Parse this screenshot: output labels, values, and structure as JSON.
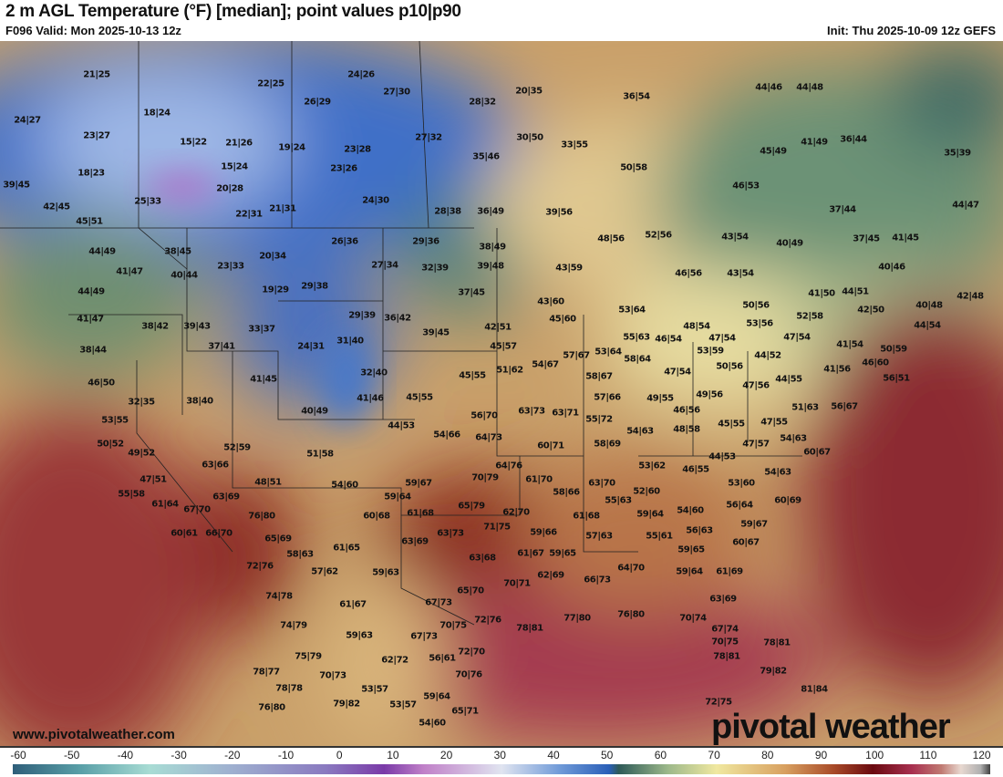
{
  "header": {
    "title": "2 m AGL Temperature (°F) [median]; point values p10|p90",
    "valid": "F096 Valid: Mon 2025-10-13 12z",
    "init": "Init: Thu 2025-10-09 12z GEFS"
  },
  "map": {
    "watermark_url": "www.pivotalweather.com",
    "logo": "pivotal weather",
    "point_values": [
      "21|25",
      "22|25",
      "24|26",
      "27|30",
      "24|27",
      "18|24",
      "28|32",
      "20|35",
      "36|54",
      "44|46",
      "44|48",
      "23|27",
      "15|22",
      "21|26",
      "19|24",
      "23|28",
      "26|29",
      "27|32",
      "30|50",
      "33|55",
      "45|49",
      "41|49",
      "36|44",
      "35|39",
      "35|46",
      "18|23",
      "15|24",
      "23|26",
      "50|58",
      "46|53",
      "39|45",
      "20|28",
      "24|30",
      "25|33",
      "42|45",
      "21|31",
      "22|31",
      "28|38",
      "36|49",
      "39|56",
      "37|44",
      "44|47",
      "45|51",
      "48|56",
      "52|56",
      "43|54",
      "40|49",
      "37|45",
      "41|45",
      "26|36",
      "29|36",
      "38|49",
      "44|49",
      "38|45",
      "20|34",
      "27|34",
      "32|39",
      "39|48",
      "43|59",
      "46|56",
      "43|54",
      "40|46",
      "41|47",
      "40|44",
      "23|33",
      "29|38",
      "19|29",
      "37|45",
      "44|49",
      "41|50",
      "44|51",
      "40|48",
      "42|48",
      "43|60",
      "53|64",
      "50|56",
      "42|50",
      "41|47",
      "45|60",
      "29|39",
      "36|42",
      "52|58",
      "38|42",
      "39|43",
      "33|37",
      "55|63",
      "48|54",
      "53|56",
      "44|54",
      "42|51",
      "39|45",
      "46|54",
      "47|54",
      "47|54",
      "31|40",
      "38|44",
      "37|41",
      "24|31",
      "45|57",
      "57|67",
      "53|64",
      "53|59",
      "44|52",
      "41|54",
      "50|59",
      "58|64",
      "50|56",
      "46|60",
      "32|40",
      "54|67",
      "41|45",
      "46|50",
      "51|62",
      "58|67",
      "47|54",
      "41|56",
      "56|51",
      "45|55",
      "44|55",
      "47|56",
      "41|46",
      "45|55",
      "57|66",
      "49|55",
      "49|56",
      "32|35",
      "38|40",
      "46|56",
      "51|63",
      "56|67",
      "40|49",
      "56|70",
      "63|73",
      "63|71",
      "55|72",
      "48|58",
      "45|55",
      "47|55",
      "53|55",
      "44|53",
      "54|66",
      "64|73",
      "54|63",
      "54|63",
      "50|52",
      "52|59",
      "60|71",
      "58|69",
      "47|57",
      "60|67",
      "49|52",
      "51|58",
      "44|53",
      "63|66",
      "64|76",
      "53|62",
      "46|55",
      "54|63",
      "47|51",
      "48|51",
      "54|60",
      "59|67",
      "70|79",
      "61|70",
      "63|70",
      "53|60",
      "55|58",
      "63|69",
      "59|64",
      "58|66",
      "52|60",
      "60|69",
      "61|64",
      "67|70",
      "65|79",
      "62|70",
      "55|63",
      "56|64",
      "76|80",
      "60|68",
      "61|68",
      "61|68",
      "59|64",
      "54|60",
      "71|75",
      "59|66",
      "60|61",
      "66|70",
      "65|69",
      "63|73",
      "63|69",
      "56|63",
      "57|63",
      "55|61",
      "59|67",
      "58|63",
      "61|65",
      "61|67",
      "59|65",
      "59|65",
      "63|68",
      "60|67",
      "72|76",
      "57|62",
      "59|63",
      "66|73",
      "64|70",
      "59|64",
      "61|69",
      "70|71",
      "62|69",
      "65|70",
      "74|78",
      "61|67",
      "67|73",
      "63|69",
      "72|76",
      "70|75",
      "78|81",
      "77|80",
      "76|80",
      "70|74",
      "67|74",
      "74|79",
      "59|63",
      "67|73",
      "72|70",
      "70|75",
      "78|81",
      "75|79",
      "62|72",
      "56|61",
      "78|81",
      "78|77",
      "70|73",
      "70|76",
      "79|82",
      "78|78",
      "53|57",
      "59|64",
      "81|84",
      "76|80",
      "79|82",
      "53|57",
      "65|71",
      "72|75",
      "54|60"
    ]
  },
  "colorbar": {
    "unit": "°F",
    "ticks": [
      "-60",
      "-50",
      "-40",
      "-30",
      "-20",
      "-10",
      "0",
      "10",
      "20",
      "30",
      "40",
      "50",
      "60",
      "70",
      "80",
      "90",
      "100",
      "110",
      "120"
    ]
  }
}
